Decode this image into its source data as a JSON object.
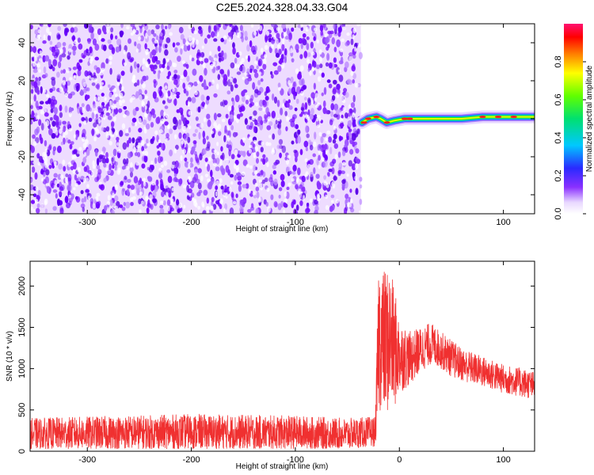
{
  "figure_title": "C2E5.2024.328.04.33.G04",
  "colors": {
    "snr_line": "#f03030",
    "spectrogram_noise": "#6a00ff",
    "axis": "#000000",
    "background": "#ffffff"
  },
  "chart_data": [
    {
      "type": "heatmap",
      "title": "C2E5.2024.328.04.33.G04",
      "xlabel": "Height of straight line (km)",
      "ylabel": "Frequency (Hz)",
      "xlim": [
        -355,
        130
      ],
      "ylim": [
        -50,
        50
      ],
      "x_ticks": [
        -300,
        -200,
        -100,
        0,
        100
      ],
      "y_ticks": [
        -40,
        -20,
        0,
        20,
        40
      ],
      "grid": false,
      "noise_region_x": [
        -355,
        -37
      ],
      "signal_region_x": [
        -37,
        130
      ],
      "signal_frequency_track": [
        {
          "x": -36,
          "y": -2
        },
        {
          "x": -30,
          "y": 0
        },
        {
          "x": -22,
          "y": 1
        },
        {
          "x": -18,
          "y": 0
        },
        {
          "x": -12,
          "y": -2
        },
        {
          "x": -5,
          "y": -1
        },
        {
          "x": 5,
          "y": 0
        },
        {
          "x": 20,
          "y": 0
        },
        {
          "x": 40,
          "y": 0
        },
        {
          "x": 60,
          "y": 0
        },
        {
          "x": 80,
          "y": 1
        },
        {
          "x": 100,
          "y": 1
        },
        {
          "x": 130,
          "y": 1
        }
      ],
      "colorbar": {
        "label": "Normalized spectral amplitude",
        "range": [
          0,
          1
        ],
        "ticks": [
          0.0,
          0.2,
          0.4,
          0.6,
          0.8
        ],
        "tick_labels": [
          "0.0",
          "0.2",
          "0.4",
          "0.6",
          "0.8"
        ],
        "colormap": "rainbow (white - purple - blue - cyan - green - yellow - red - magenta)"
      }
    },
    {
      "type": "line",
      "xlabel": "Height of straight line (km)",
      "ylabel": "SNR (10 * v/v)",
      "xlim": [
        -355,
        130
      ],
      "ylim": [
        0,
        2300
      ],
      "x_ticks": [
        -300,
        -200,
        -100,
        0,
        100
      ],
      "y_ticks": [
        0,
        500,
        1000,
        1500,
        2000
      ],
      "grid": false,
      "series": [
        {
          "color": "#f03030",
          "envelope_x": [
            -355,
            -300,
            -200,
            -100,
            -50,
            -23,
            -20,
            -15,
            -10,
            -5,
            0,
            10,
            20,
            30,
            40,
            50,
            60,
            80,
            100,
            120,
            130
          ],
          "envelope_low": [
            30,
            30,
            30,
            30,
            30,
            60,
            500,
            450,
            450,
            500,
            700,
            800,
            950,
            1050,
            1000,
            900,
            850,
            780,
            700,
            650,
            620
          ],
          "envelope_high": [
            400,
            420,
            450,
            430,
            400,
            420,
            2300,
            2200,
            2250,
            2000,
            1600,
            1450,
            1500,
            1560,
            1450,
            1350,
            1250,
            1150,
            1050,
            1000,
            960
          ]
        }
      ]
    }
  ]
}
